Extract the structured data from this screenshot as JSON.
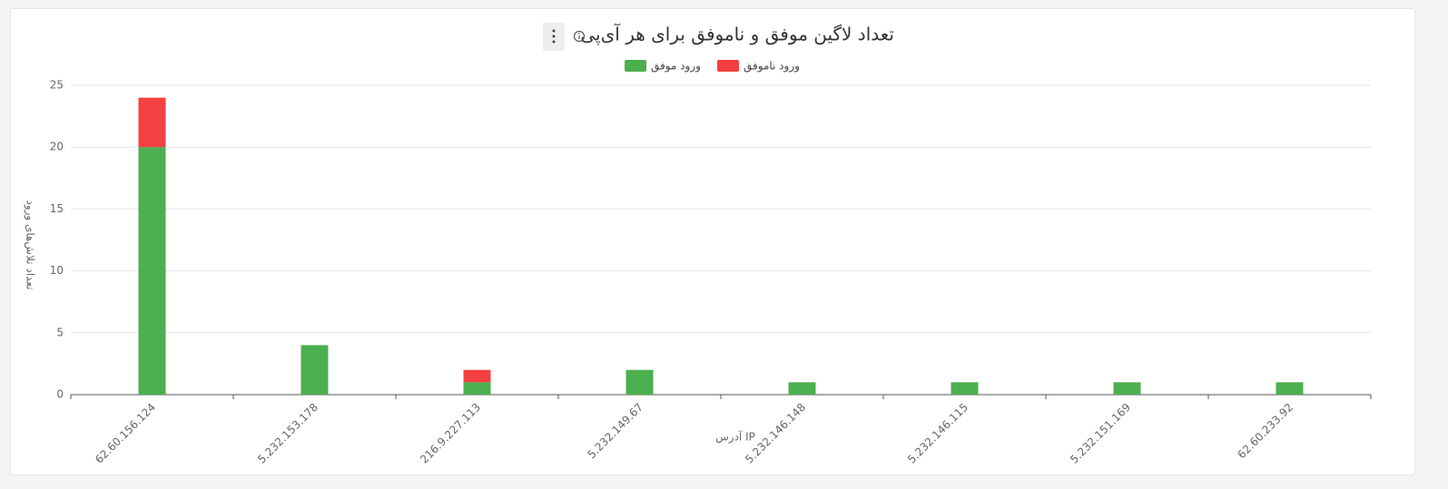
{
  "chart_data": {
    "type": "bar",
    "stacked": true,
    "title": "تعداد لاگین موفق و ناموفق برای هر آی‌پی",
    "x_label": "آدرس IP",
    "y_label": "تعداد تلاش‌های ورود",
    "categories": [
      "62.60.156.124",
      "5.232.153.178",
      "216.9.227.113",
      "5.232.149.67",
      "5.232.146.148",
      "5.232.146.115",
      "5.232.151.169",
      "62.60.233.92"
    ],
    "series": [
      {
        "name": "ورود موفق",
        "color": "#4caf50",
        "values": [
          20,
          4,
          1,
          2,
          1,
          1,
          1,
          1
        ]
      },
      {
        "name": "ورود ناموفق",
        "color": "#f44040",
        "values": [
          4,
          0,
          1,
          0,
          0,
          0,
          0,
          0
        ]
      }
    ],
    "ylim": [
      0,
      25
    ],
    "yticks": [
      0,
      5,
      10,
      15,
      20,
      25
    ],
    "grid": true
  }
}
